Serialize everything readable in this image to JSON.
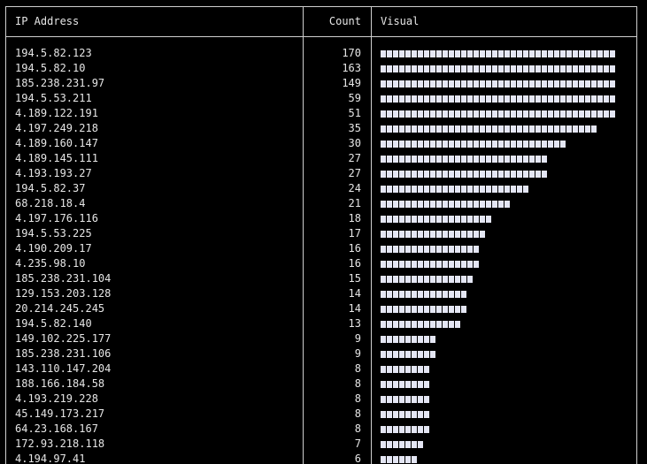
{
  "table": {
    "headers": {
      "ip": "IP Address",
      "count": "Count",
      "visual": "Visual"
    },
    "rows": [
      {
        "ip": "194.5.82.123",
        "count": "170",
        "blocks": 38
      },
      {
        "ip": "194.5.82.10",
        "count": "163",
        "blocks": 38
      },
      {
        "ip": "185.238.231.97",
        "count": "149",
        "blocks": 38
      },
      {
        "ip": "194.5.53.211",
        "count": "59",
        "blocks": 38
      },
      {
        "ip": "4.189.122.191",
        "count": "51",
        "blocks": 38
      },
      {
        "ip": "4.197.249.218",
        "count": "35",
        "blocks": 35
      },
      {
        "ip": "4.189.160.147",
        "count": "30",
        "blocks": 30
      },
      {
        "ip": "4.189.145.111",
        "count": "27",
        "blocks": 27
      },
      {
        "ip": "4.193.193.27",
        "count": "27",
        "blocks": 27
      },
      {
        "ip": "194.5.82.37",
        "count": "24",
        "blocks": 24
      },
      {
        "ip": "68.218.18.4",
        "count": "21",
        "blocks": 21
      },
      {
        "ip": "4.197.176.116",
        "count": "18",
        "blocks": 18
      },
      {
        "ip": "194.5.53.225",
        "count": "17",
        "blocks": 17
      },
      {
        "ip": "4.190.209.17",
        "count": "16",
        "blocks": 16
      },
      {
        "ip": "4.235.98.10",
        "count": "16",
        "blocks": 16
      },
      {
        "ip": "185.238.231.104",
        "count": "15",
        "blocks": 15
      },
      {
        "ip": "129.153.203.128",
        "count": "14",
        "blocks": 14
      },
      {
        "ip": "20.214.245.245",
        "count": "14",
        "blocks": 14
      },
      {
        "ip": "194.5.82.140",
        "count": "13",
        "blocks": 13
      },
      {
        "ip": "149.102.225.177",
        "count": "9",
        "blocks": 9
      },
      {
        "ip": "185.238.231.106",
        "count": "9",
        "blocks": 9
      },
      {
        "ip": "143.110.147.204",
        "count": "8",
        "blocks": 8
      },
      {
        "ip": "188.166.184.58",
        "count": "8",
        "blocks": 8
      },
      {
        "ip": "4.193.219.228",
        "count": "8",
        "blocks": 8
      },
      {
        "ip": "45.149.173.217",
        "count": "8",
        "blocks": 8
      },
      {
        "ip": "64.23.168.167",
        "count": "8",
        "blocks": 8
      },
      {
        "ip": "172.93.218.118",
        "count": "7",
        "blocks": 7
      },
      {
        "ip": "4.194.97.41",
        "count": "6",
        "blocks": 6
      }
    ]
  },
  "colors": {
    "background": "#000000",
    "text": "#e6e6e6",
    "border": "#cfcfcf",
    "bar_block": "#e4e6f4"
  }
}
